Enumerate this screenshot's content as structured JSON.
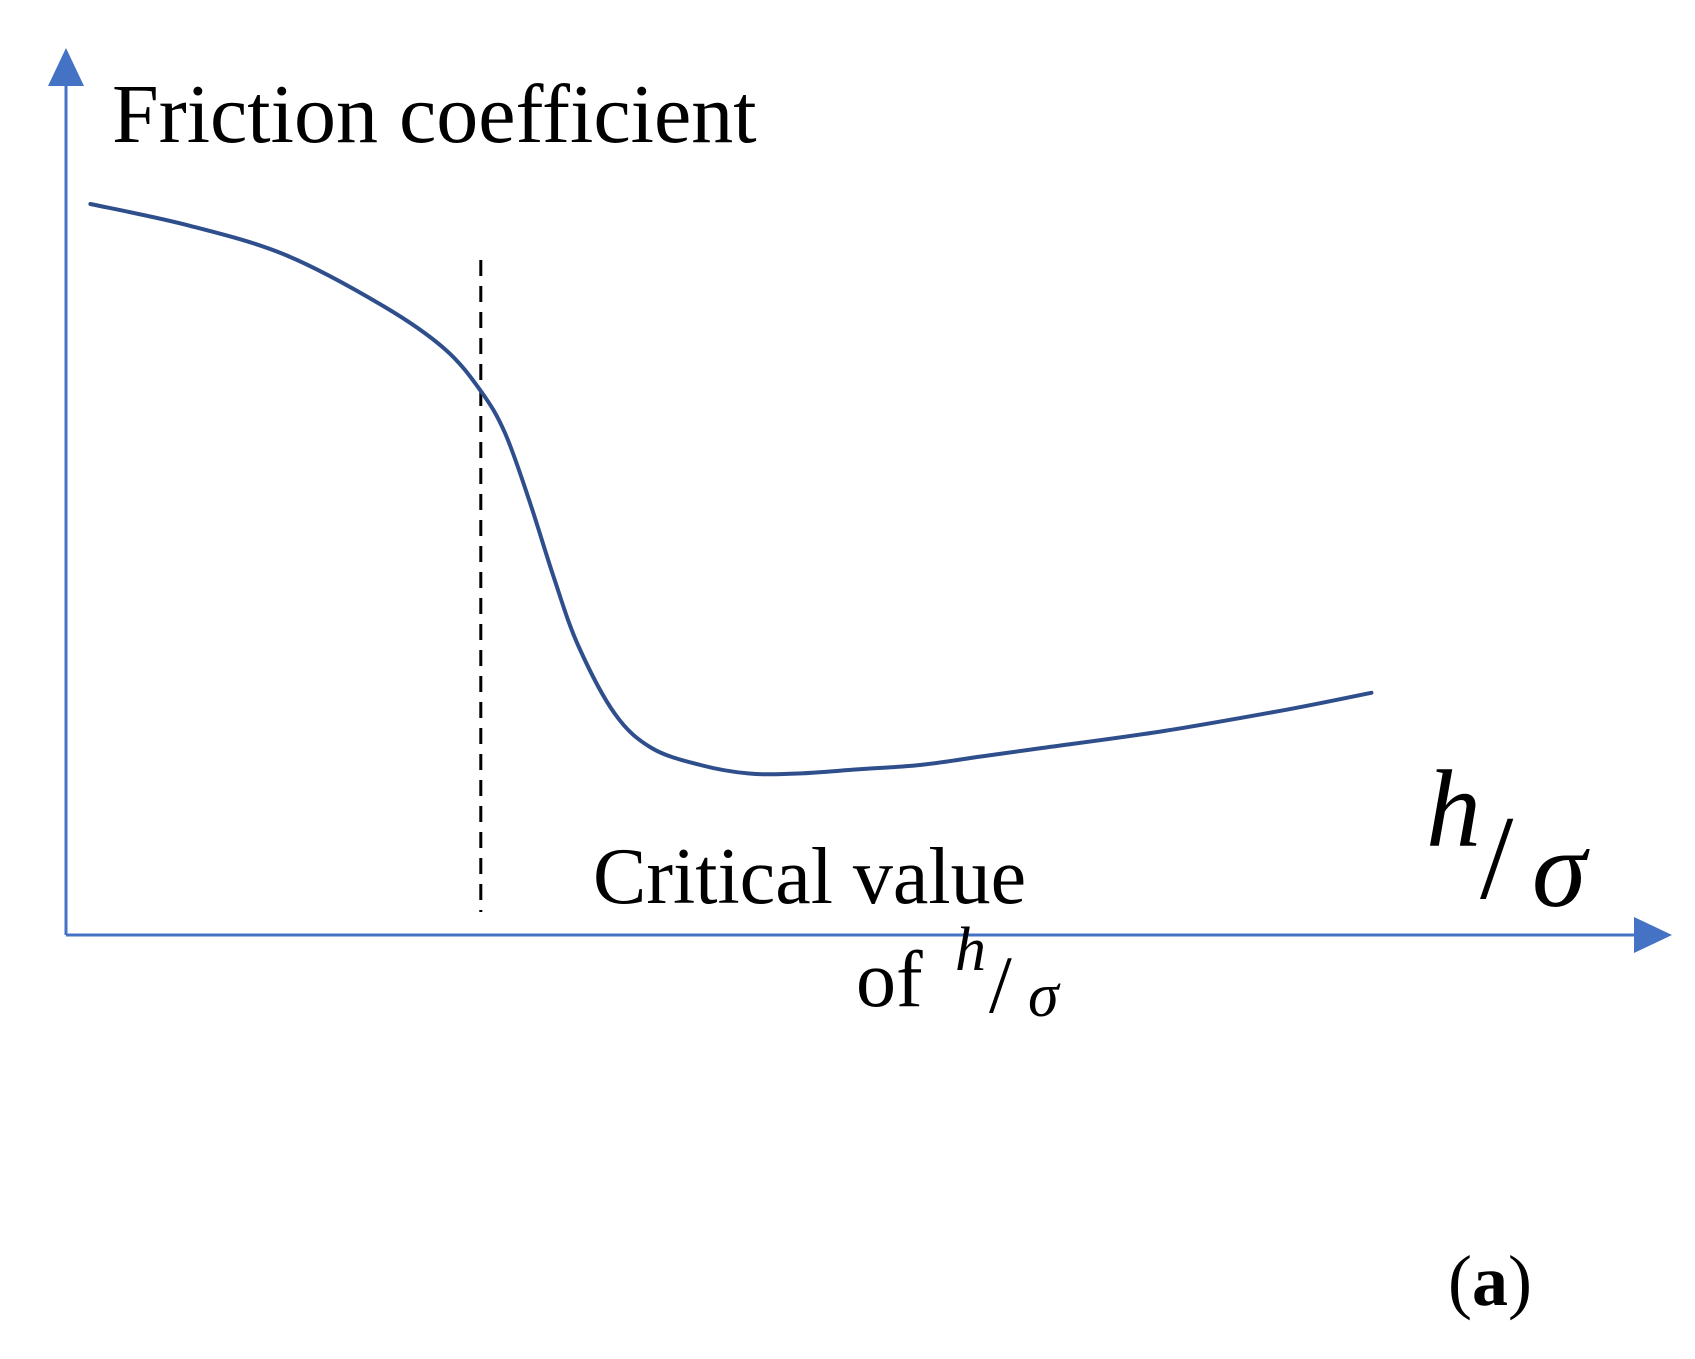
{
  "chart_data": {
    "type": "line",
    "title": "",
    "ylabel": "Friction coefficient",
    "xlabel": {
      "numerator": "h",
      "slash": "/",
      "denominator": "σ"
    },
    "annotation": {
      "line1": "Critical value",
      "line2_prefix": "of",
      "numerator": "h",
      "slash": "/",
      "denominator": "σ"
    },
    "panel_label": {
      "open": "(",
      "letter": "a",
      "close": ")"
    },
    "critical_x": 0.34,
    "xlim": [
      0,
      1.15
    ],
    "ylim": [
      0,
      1
    ],
    "grid": false,
    "legend": "none",
    "series": [
      {
        "x": [
          0.02,
          0.1,
          0.18,
          0.26,
          0.31,
          0.34,
          0.36,
          0.38,
          0.4,
          0.42,
          0.45,
          0.48,
          0.52,
          0.56,
          0.6,
          0.65,
          0.7,
          0.75,
          0.8,
          0.9,
          1.0,
          1.07
        ],
        "y": [
          0.86,
          0.835,
          0.8,
          0.74,
          0.69,
          0.64,
          0.59,
          0.51,
          0.42,
          0.34,
          0.26,
          0.22,
          0.2,
          0.19,
          0.19,
          0.195,
          0.2,
          0.21,
          0.22,
          0.24,
          0.265,
          0.285
        ]
      }
    ],
    "colors": {
      "axis": "#4472C4",
      "curve": "#2F4E8C",
      "critical_line": "#000000"
    }
  }
}
